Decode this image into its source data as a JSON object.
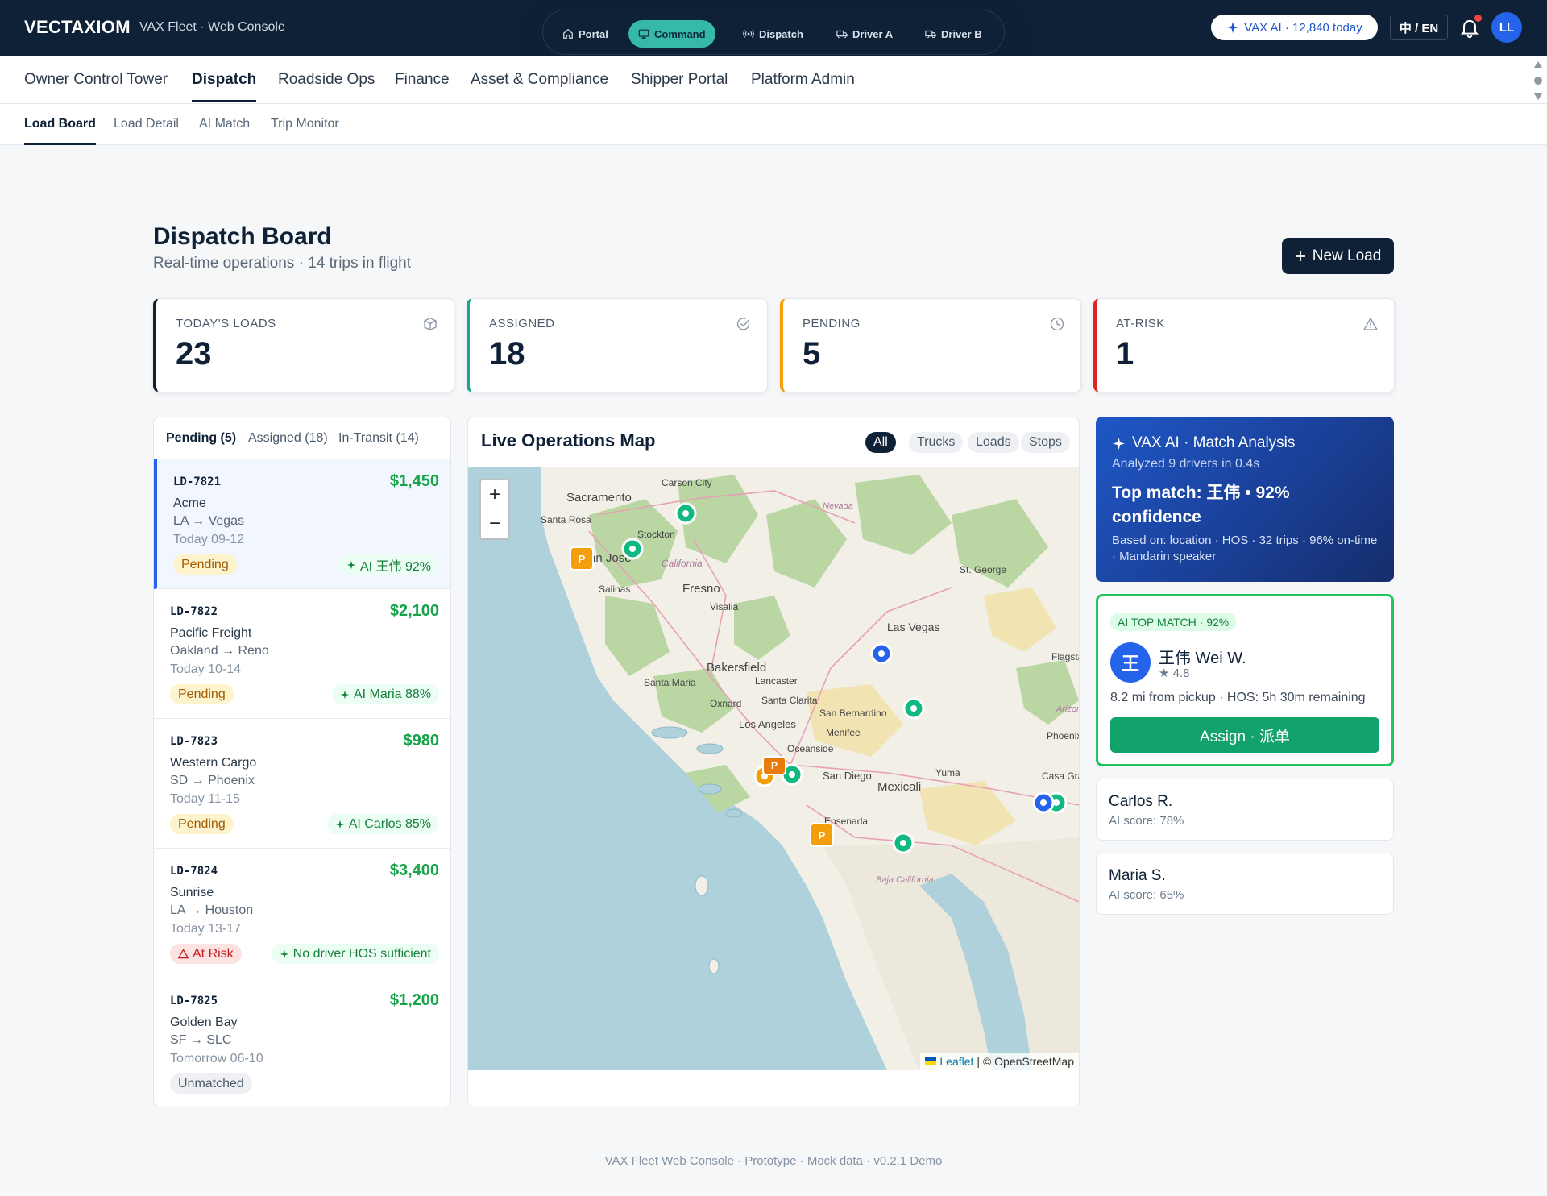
{
  "header": {
    "brand": "VECTAXIOM",
    "subtitle": "VAX Fleet · Web Console",
    "modes": [
      {
        "label": "Portal",
        "icon": "home-icon"
      },
      {
        "label": "Command",
        "icon": "monitor-icon",
        "active": true
      },
      {
        "label": "Dispatch",
        "icon": "radio-icon"
      },
      {
        "label": "Driver A",
        "icon": "truck-icon"
      },
      {
        "label": "Driver B",
        "icon": "truck-icon"
      }
    ],
    "ai_usage": "VAX AI · 12,840 today",
    "language": "中 / EN",
    "avatar": "LL"
  },
  "nav": {
    "items": [
      "Owner Control Tower",
      "Dispatch",
      "Roadside Ops",
      "Finance",
      "Asset & Compliance",
      "Shipper Portal",
      "Platform Admin"
    ],
    "active": "Dispatch"
  },
  "subnav": {
    "items": [
      "Load Board",
      "Load Detail",
      "AI Match",
      "Trip Monitor"
    ],
    "active": "Load Board"
  },
  "page": {
    "title": "Dispatch Board",
    "subtitle": "Real-time operations · 14 trips in flight",
    "new_load": "New Load"
  },
  "stats": [
    {
      "label": "TODAY'S LOADS",
      "value": "23",
      "color": "#0f2137",
      "icon": "box-icon"
    },
    {
      "label": "ASSIGNED",
      "value": "18",
      "color": "#1fa38a",
      "icon": "check-circle-icon"
    },
    {
      "label": "PENDING",
      "value": "5",
      "color": "#f59e0b",
      "icon": "clock-icon"
    },
    {
      "label": "AT-RISK",
      "value": "1",
      "color": "#dc2626",
      "icon": "warning-icon"
    }
  ],
  "load_tabs": [
    "Pending (5)",
    "Assigned (18)",
    "In-Transit (14)"
  ],
  "loads": [
    {
      "id": "LD-7821",
      "price": "$1,450",
      "shipper": "Acme",
      "route": "LA → Vegas",
      "time": "Today 09-12",
      "status": "Pending",
      "ai": "AI 王伟 92%"
    },
    {
      "id": "LD-7822",
      "price": "$2,100",
      "shipper": "Pacific Freight",
      "route": "Oakland → Reno",
      "time": "Today 10-14",
      "status": "Pending",
      "ai": "AI Maria 88%"
    },
    {
      "id": "LD-7823",
      "price": "$980",
      "shipper": "Western Cargo",
      "route": "SD → Phoenix",
      "time": "Today 11-15",
      "status": "Pending",
      "ai": "AI Carlos 85%"
    },
    {
      "id": "LD-7824",
      "price": "$3,400",
      "shipper": "Sunrise",
      "route": "LA → Houston",
      "time": "Today 13-17",
      "status": "At Risk",
      "ai": "No driver HOS sufficient"
    },
    {
      "id": "LD-7825",
      "price": "$1,200",
      "shipper": "Golden Bay",
      "route": "SF → SLC",
      "time": "Tomorrow 06-10",
      "status": "Unmatched",
      "ai": ""
    }
  ],
  "map": {
    "title": "Live Operations Map",
    "filters": [
      "All",
      "Trucks",
      "Loads",
      "Stops"
    ],
    "active_filter": "All",
    "zoom_in": "+",
    "zoom_out": "−",
    "attribution_link": "Leaflet",
    "attribution_text": "| © OpenStreetMap",
    "labels": [
      "Sacramento",
      "Carson City",
      "Santa Rosa",
      "San Jose",
      "Stockton",
      "California",
      "Nevada",
      "Fresno",
      "Salinas",
      "Visalia",
      "St. George",
      "Las Vegas",
      "Bakersfield",
      "Santa Maria",
      "Lancaster",
      "Flagstaff",
      "Oxnard",
      "Santa Clarita",
      "San Bernardino",
      "Los Angeles",
      "Menifee",
      "Oceanside",
      "Phoenix",
      "Arizona",
      "San Diego",
      "Mexicali",
      "Casa Grande",
      "Ensenada",
      "Baja California",
      "Yuma"
    ]
  },
  "ai_panel": {
    "title": "VAX AI · Match Analysis",
    "analyzed": "Analyzed 9 drivers in 0.4s",
    "top_match": "Top match: 王伟 • 92% confidence",
    "basis": "Based on: location · HOS · 32 trips · 96% on-time · Mandarin speaker"
  },
  "top_match": {
    "badge": "AI TOP MATCH · 92%",
    "avatar": "王",
    "name": "王伟 Wei W.",
    "rating": "★ 4.8",
    "detail": "8.2 mi from pickup · HOS: 5h 30m remaining",
    "assign": "Assign · 派单"
  },
  "alternates": [
    {
      "name": "Carlos R.",
      "score": "AI score: 78%"
    },
    {
      "name": "Maria S.",
      "score": "AI score: 65%"
    }
  ],
  "footer": "VAX Fleet Web Console · Prototype · Mock data · v0.2.1 Demo"
}
